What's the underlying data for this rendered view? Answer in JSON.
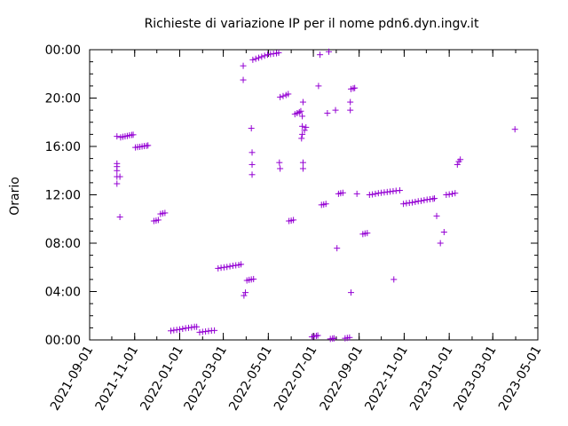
{
  "chart_data": {
    "type": "scatter",
    "title": "Richieste di variazione IP per il nome pdn6.dyn.ingv.it",
    "ylabel": "Orario",
    "xlabel": "",
    "marker": "+",
    "color": "#9400d3",
    "grid": false,
    "x_ticks": [
      "2021-09-01",
      "2021-11-01",
      "2022-01-01",
      "2022-03-01",
      "2022-05-01",
      "2022-07-01",
      "2022-09-01",
      "2022-11-01",
      "2023-01-01",
      "2023-03-01",
      "2023-05-01"
    ],
    "y_ticks": [
      "00:00",
      "04:00",
      "08:00",
      "12:00",
      "16:00",
      "20:00",
      "00:00"
    ],
    "xlim": [
      "2021-09-01",
      "2023-05-01"
    ],
    "ylim": [
      "00:00",
      "24:00"
    ],
    "points": [
      [
        "2021-10-08",
        "12:55"
      ],
      [
        "2021-10-08",
        "13:30"
      ],
      [
        "2021-10-08",
        "14:00"
      ],
      [
        "2021-10-08",
        "14:20"
      ],
      [
        "2021-10-08",
        "14:35"
      ],
      [
        "2021-10-08",
        "16:50"
      ],
      [
        "2021-10-12",
        "13:30"
      ],
      [
        "2021-10-12",
        "10:10"
      ],
      [
        "2021-10-13",
        "16:45"
      ],
      [
        "2021-10-16",
        "16:48"
      ],
      [
        "2021-10-19",
        "16:50"
      ],
      [
        "2021-10-22",
        "16:52"
      ],
      [
        "2021-10-25",
        "16:55"
      ],
      [
        "2021-10-28",
        "16:57"
      ],
      [
        "2021-10-30",
        "16:58"
      ],
      [
        "2021-11-02",
        "15:55"
      ],
      [
        "2021-11-05",
        "15:57"
      ],
      [
        "2021-11-08",
        "15:58"
      ],
      [
        "2021-11-11",
        "16:00"
      ],
      [
        "2021-11-14",
        "16:02"
      ],
      [
        "2021-11-17",
        "16:03"
      ],
      [
        "2021-11-19",
        "16:05"
      ],
      [
        "2021-11-27",
        "09:50"
      ],
      [
        "2021-11-30",
        "09:52"
      ],
      [
        "2021-12-03",
        "09:55"
      ],
      [
        "2021-12-06",
        "10:25"
      ],
      [
        "2021-12-09",
        "10:28"
      ],
      [
        "2021-12-12",
        "10:30"
      ],
      [
        "2021-12-20",
        "00:45"
      ],
      [
        "2021-12-24",
        "00:48"
      ],
      [
        "2021-12-28",
        "00:50"
      ],
      [
        "2022-01-01",
        "00:52"
      ],
      [
        "2022-01-05",
        "00:55"
      ],
      [
        "2022-01-09",
        "00:58"
      ],
      [
        "2022-01-13",
        "01:00"
      ],
      [
        "2022-01-17",
        "01:02"
      ],
      [
        "2022-01-21",
        "01:05"
      ],
      [
        "2022-01-24",
        "01:05"
      ],
      [
        "2022-01-28",
        "00:38"
      ],
      [
        "2022-02-01",
        "00:40"
      ],
      [
        "2022-02-05",
        "00:42"
      ],
      [
        "2022-02-09",
        "00:44"
      ],
      [
        "2022-02-13",
        "00:46"
      ],
      [
        "2022-02-17",
        "00:47"
      ],
      [
        "2022-02-22",
        "05:55"
      ],
      [
        "2022-02-26",
        "05:58"
      ],
      [
        "2022-03-02",
        "06:00"
      ],
      [
        "2022-03-06",
        "06:02"
      ],
      [
        "2022-03-10",
        "06:05"
      ],
      [
        "2022-03-14",
        "06:08"
      ],
      [
        "2022-03-18",
        "06:10"
      ],
      [
        "2022-03-22",
        "06:12"
      ],
      [
        "2022-03-25",
        "06:15"
      ],
      [
        "2022-03-28",
        "21:30"
      ],
      [
        "2022-03-28",
        "22:40"
      ],
      [
        "2022-03-29",
        "03:40"
      ],
      [
        "2022-03-31",
        "03:55"
      ],
      [
        "2022-04-02",
        "04:55"
      ],
      [
        "2022-04-05",
        "04:58"
      ],
      [
        "2022-04-08",
        "05:00"
      ],
      [
        "2022-04-11",
        "05:02"
      ],
      [
        "2022-04-08",
        "17:30"
      ],
      [
        "2022-04-09",
        "15:30"
      ],
      [
        "2022-04-09",
        "14:30"
      ],
      [
        "2022-04-09",
        "13:40"
      ],
      [
        "2022-04-10",
        "23:10"
      ],
      [
        "2022-04-14",
        "23:15"
      ],
      [
        "2022-04-18",
        "23:20"
      ],
      [
        "2022-04-22",
        "23:25"
      ],
      [
        "2022-04-26",
        "23:30"
      ],
      [
        "2022-04-30",
        "23:35"
      ],
      [
        "2022-05-04",
        "23:38"
      ],
      [
        "2022-05-08",
        "23:40"
      ],
      [
        "2022-05-12",
        "23:42"
      ],
      [
        "2022-05-15",
        "23:45"
      ],
      [
        "2022-05-16",
        "14:40"
      ],
      [
        "2022-05-17",
        "14:10"
      ],
      [
        "2022-05-17",
        "20:05"
      ],
      [
        "2022-05-21",
        "20:10"
      ],
      [
        "2022-05-25",
        "20:15"
      ],
      [
        "2022-05-28",
        "20:20"
      ],
      [
        "2022-05-29",
        "09:50"
      ],
      [
        "2022-06-01",
        "09:52"
      ],
      [
        "2022-06-04",
        "09:55"
      ],
      [
        "2022-06-06",
        "18:40"
      ],
      [
        "2022-06-09",
        "18:45"
      ],
      [
        "2022-06-12",
        "18:50"
      ],
      [
        "2022-06-14",
        "18:55"
      ],
      [
        "2022-06-15",
        "16:40"
      ],
      [
        "2022-06-16",
        "17:00"
      ],
      [
        "2022-06-16",
        "17:40"
      ],
      [
        "2022-06-16",
        "18:30"
      ],
      [
        "2022-06-17",
        "19:40"
      ],
      [
        "2022-06-17",
        "14:40"
      ],
      [
        "2022-06-17",
        "14:10"
      ],
      [
        "2022-06-19",
        "17:20"
      ],
      [
        "2022-06-21",
        "17:35"
      ],
      [
        "2022-06-29",
        "00:15"
      ],
      [
        "2022-07-02",
        "00:18"
      ],
      [
        "2022-07-05",
        "00:20"
      ],
      [
        "2022-07-07",
        "00:22"
      ],
      [
        "2022-07-08",
        "21:00"
      ],
      [
        "2022-07-10",
        "23:35"
      ],
      [
        "2022-07-12",
        "11:10"
      ],
      [
        "2022-07-15",
        "11:12"
      ],
      [
        "2022-07-18",
        "11:15"
      ],
      [
        "2022-07-20",
        "18:45"
      ],
      [
        "2022-07-22",
        "23:50"
      ],
      [
        "2022-07-24",
        "00:05"
      ],
      [
        "2022-07-27",
        "00:07"
      ],
      [
        "2022-07-29",
        "00:08"
      ],
      [
        "2022-07-31",
        "19:00"
      ],
      [
        "2022-08-02",
        "07:35"
      ],
      [
        "2022-08-04",
        "12:05"
      ],
      [
        "2022-08-07",
        "12:08"
      ],
      [
        "2022-08-10",
        "12:10"
      ],
      [
        "2022-08-13",
        "00:08"
      ],
      [
        "2022-08-16",
        "00:10"
      ],
      [
        "2022-08-19",
        "00:12"
      ],
      [
        "2022-08-20",
        "19:00"
      ],
      [
        "2022-08-20",
        "19:40"
      ],
      [
        "2022-08-21",
        "03:55"
      ],
      [
        "2022-08-21",
        "20:45"
      ],
      [
        "2022-08-24",
        "20:48"
      ],
      [
        "2022-08-26",
        "20:50"
      ],
      [
        "2022-08-29",
        "12:05"
      ],
      [
        "2022-09-06",
        "08:45"
      ],
      [
        "2022-09-09",
        "08:48"
      ],
      [
        "2022-09-12",
        "08:50"
      ],
      [
        "2022-09-15",
        "12:00"
      ],
      [
        "2022-09-19",
        "12:02"
      ],
      [
        "2022-09-23",
        "12:05"
      ],
      [
        "2022-09-27",
        "12:08"
      ],
      [
        "2022-10-01",
        "12:10"
      ],
      [
        "2022-10-05",
        "12:12"
      ],
      [
        "2022-10-09",
        "12:14"
      ],
      [
        "2022-10-13",
        "12:16"
      ],
      [
        "2022-10-17",
        "12:18"
      ],
      [
        "2022-10-21",
        "12:20"
      ],
      [
        "2022-10-26",
        "12:22"
      ],
      [
        "2022-10-18",
        "05:00"
      ],
      [
        "2022-10-31",
        "11:15"
      ],
      [
        "2022-11-04",
        "11:18"
      ],
      [
        "2022-11-08",
        "11:20"
      ],
      [
        "2022-11-12",
        "11:22"
      ],
      [
        "2022-11-16",
        "11:25"
      ],
      [
        "2022-11-20",
        "11:28"
      ],
      [
        "2022-11-24",
        "11:30"
      ],
      [
        "2022-11-28",
        "11:33"
      ],
      [
        "2022-12-02",
        "11:36"
      ],
      [
        "2022-12-06",
        "11:38"
      ],
      [
        "2022-12-10",
        "11:40"
      ],
      [
        "2022-12-12",
        "11:42"
      ],
      [
        "2022-12-15",
        "10:15"
      ],
      [
        "2022-12-20",
        "08:00"
      ],
      [
        "2022-12-25",
        "08:55"
      ],
      [
        "2022-12-28",
        "12:00"
      ],
      [
        "2023-01-01",
        "12:02"
      ],
      [
        "2023-01-05",
        "12:05"
      ],
      [
        "2023-01-09",
        "12:08"
      ],
      [
        "2023-01-12",
        "14:30"
      ],
      [
        "2023-01-14",
        "14:45"
      ],
      [
        "2023-01-16",
        "14:55"
      ],
      [
        "2023-03-31",
        "17:25"
      ]
    ]
  }
}
